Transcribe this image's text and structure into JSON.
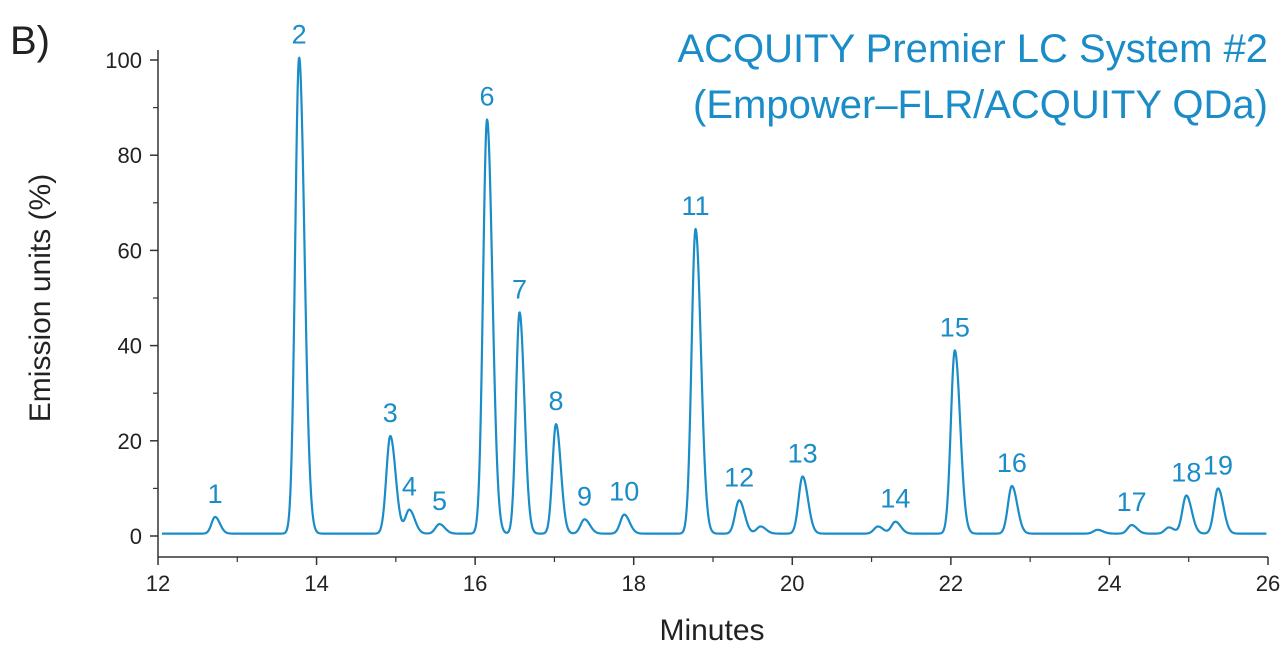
{
  "panel_label": "B)",
  "chart_data": {
    "type": "line",
    "title": "ACQUITY Premier LC System #2",
    "subtitle": "(Empower–FLR/ACQUITY QDa)",
    "xlabel": "Minutes",
    "ylabel": "Emission units (%)",
    "xlim": [
      12,
      26
    ],
    "ylim": [
      0,
      100
    ],
    "x_ticks": [
      12,
      14,
      16,
      18,
      20,
      22,
      24,
      26
    ],
    "y_ticks": [
      0,
      20,
      40,
      60,
      80,
      100
    ],
    "grid": false,
    "line_color": "#1a8cc7",
    "label_color": "#1a8cc7",
    "baseline": 0.5,
    "peaks": [
      {
        "label": "1",
        "x": 12.72,
        "y": 3.5,
        "width": 0.045
      },
      {
        "label": "2",
        "x": 13.78,
        "y": 100,
        "width": 0.05
      },
      {
        "label": "3",
        "x": 14.93,
        "y": 20.5,
        "width": 0.05
      },
      {
        "label": "4",
        "x": 15.17,
        "y": 5,
        "width": 0.05
      },
      {
        "label": "5",
        "x": 15.55,
        "y": 2,
        "width": 0.05
      },
      {
        "label": "6",
        "x": 16.15,
        "y": 87,
        "width": 0.05
      },
      {
        "label": "7",
        "x": 16.56,
        "y": 46.5,
        "width": 0.045
      },
      {
        "label": "8",
        "x": 17.02,
        "y": 23,
        "width": 0.045
      },
      {
        "label": "9",
        "x": 17.38,
        "y": 3,
        "width": 0.05
      },
      {
        "label": "10",
        "x": 17.88,
        "y": 4,
        "width": 0.05
      },
      {
        "label": "11",
        "x": 18.78,
        "y": 64,
        "width": 0.05
      },
      {
        "label": "12",
        "x": 19.33,
        "y": 7,
        "width": 0.05
      },
      {
        "label": "",
        "x": 19.6,
        "y": 1.5,
        "width": 0.05
      },
      {
        "label": "13",
        "x": 20.13,
        "y": 12,
        "width": 0.05
      },
      {
        "label": "",
        "x": 21.08,
        "y": 1.5,
        "width": 0.05
      },
      {
        "label": "14",
        "x": 21.3,
        "y": 2.5,
        "width": 0.05
      },
      {
        "label": "15",
        "x": 22.05,
        "y": 38.5,
        "width": 0.05
      },
      {
        "label": "16",
        "x": 22.77,
        "y": 10,
        "width": 0.05
      },
      {
        "label": "",
        "x": 23.85,
        "y": 0.8,
        "width": 0.05
      },
      {
        "label": "17",
        "x": 24.28,
        "y": 1.8,
        "width": 0.05
      },
      {
        "label": "",
        "x": 24.75,
        "y": 1.3,
        "width": 0.05
      },
      {
        "label": "18",
        "x": 24.97,
        "y": 8,
        "width": 0.05
      },
      {
        "label": "19",
        "x": 25.37,
        "y": 9.5,
        "width": 0.05
      }
    ]
  }
}
